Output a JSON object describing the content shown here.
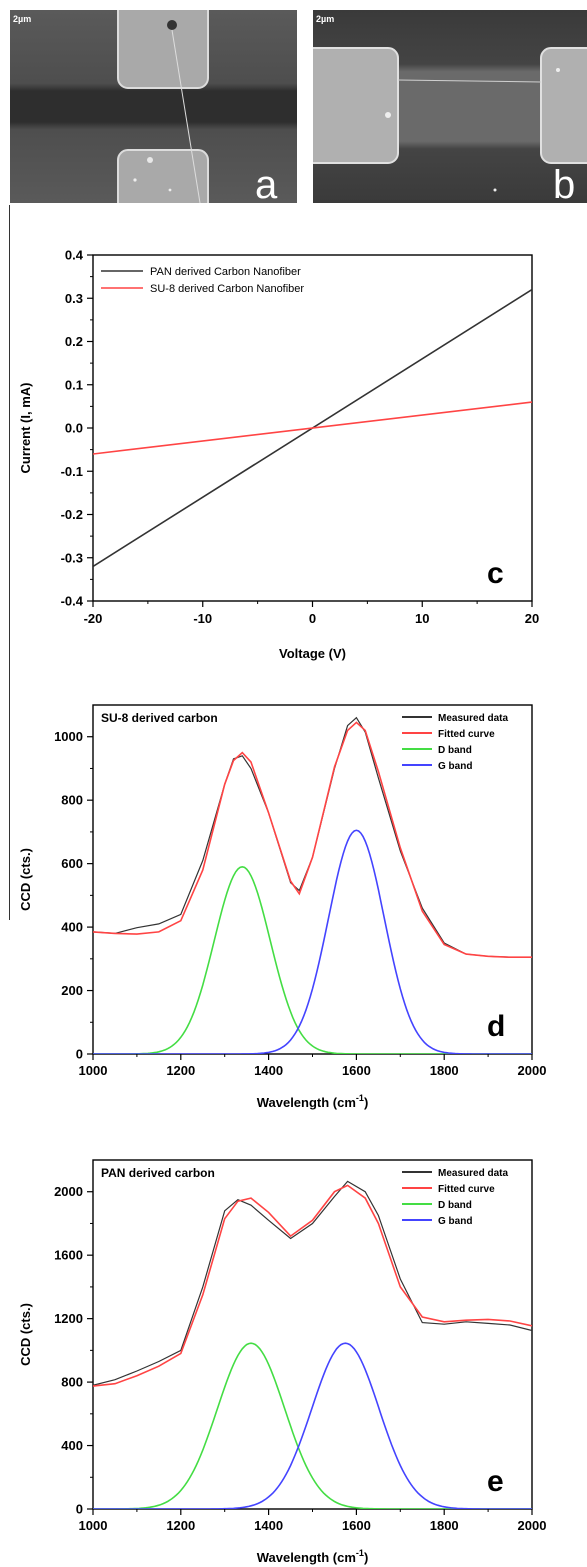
{
  "sem": {
    "a": {
      "scale_label": "2µm",
      "panel_letter": "a"
    },
    "b": {
      "scale_label": "2µm",
      "panel_letter": "b"
    }
  },
  "chart_data": [
    {
      "id": "c",
      "type": "line",
      "panel_letter": "c",
      "xlabel": "Voltage (V)",
      "ylabel": "Current (I, mA)",
      "xlim": [
        -20,
        20
      ],
      "ylim": [
        -0.4,
        0.4
      ],
      "xticks": [
        -20,
        -10,
        0,
        10,
        20
      ],
      "yticks": [
        -0.4,
        -0.3,
        -0.2,
        -0.1,
        0.0,
        0.1,
        0.2,
        0.3,
        0.4
      ],
      "legend_position": "top-left",
      "series": [
        {
          "name": "PAN derived Carbon Nanofiber",
          "color": "#333333",
          "x": [
            -20,
            20
          ],
          "y": [
            -0.32,
            0.32
          ]
        },
        {
          "name": "SU-8 derived Carbon Nanofiber",
          "color": "#ff4444",
          "x": [
            -20,
            20
          ],
          "y": [
            -0.06,
            0.06
          ]
        }
      ]
    },
    {
      "id": "d",
      "type": "line",
      "panel_letter": "d",
      "title": "SU-8 derived carbon",
      "xlabel": "Wavelength (cm",
      "xlabel_sup": "-1",
      "xlabel_end": ")",
      "ylabel": "CCD (cts.)",
      "xlim": [
        1000,
        2000
      ],
      "ylim": [
        0,
        1100
      ],
      "xticks": [
        1000,
        1200,
        1400,
        1600,
        1800,
        2000
      ],
      "yticks": [
        0,
        200,
        400,
        600,
        800,
        1000
      ],
      "legend_position": "top-right",
      "series": [
        {
          "name": "Measured data",
          "color": "#333333",
          "x": [
            1000,
            1050,
            1100,
            1150,
            1200,
            1250,
            1300,
            1320,
            1340,
            1360,
            1400,
            1450,
            1470,
            1500,
            1550,
            1580,
            1600,
            1620,
            1650,
            1700,
            1750,
            1800,
            1850,
            1900,
            1950,
            2000
          ],
          "y": [
            385,
            380,
            398,
            410,
            440,
            610,
            850,
            930,
            940,
            900,
            760,
            540,
            515,
            620,
            900,
            1035,
            1060,
            1015,
            870,
            640,
            460,
            350,
            315,
            308,
            305,
            305
          ]
        },
        {
          "name": "Fitted curve",
          "color": "#ff4444",
          "x": [
            1000,
            1050,
            1100,
            1150,
            1200,
            1250,
            1300,
            1320,
            1340,
            1360,
            1400,
            1450,
            1470,
            1500,
            1550,
            1580,
            1600,
            1620,
            1650,
            1700,
            1750,
            1800,
            1850,
            1900,
            1950,
            2000
          ],
          "y": [
            385,
            380,
            378,
            385,
            420,
            580,
            850,
            925,
            950,
            920,
            760,
            545,
            505,
            620,
            905,
            1020,
            1045,
            1020,
            890,
            650,
            450,
            345,
            315,
            308,
            305,
            305
          ]
        },
        {
          "name": "D band",
          "color": "#44dd44",
          "peak": {
            "center": 1340,
            "height": 590,
            "fwhm": 150
          }
        },
        {
          "name": "G band",
          "color": "#4444ff",
          "peak": {
            "center": 1600,
            "height": 705,
            "fwhm": 150
          }
        }
      ]
    },
    {
      "id": "e",
      "type": "line",
      "panel_letter": "e",
      "title": "PAN derived carbon",
      "xlabel": "Wavelength (cm",
      "xlabel_sup": "-1",
      "xlabel_end": ")",
      "ylabel": "CCD (cts.)",
      "xlim": [
        1000,
        2000
      ],
      "ylim": [
        0,
        2200
      ],
      "xticks": [
        1000,
        1200,
        1400,
        1600,
        1800,
        2000
      ],
      "yticks": [
        0,
        400,
        800,
        1200,
        1600,
        2000
      ],
      "legend_position": "top-right",
      "series": [
        {
          "name": "Measured data",
          "color": "#333333",
          "x": [
            1000,
            1050,
            1100,
            1150,
            1200,
            1250,
            1300,
            1330,
            1360,
            1400,
            1450,
            1500,
            1550,
            1580,
            1620,
            1650,
            1700,
            1750,
            1800,
            1850,
            1900,
            1950,
            2000
          ],
          "y": [
            780,
            815,
            870,
            930,
            1000,
            1400,
            1880,
            1950,
            1915,
            1820,
            1705,
            1800,
            1970,
            2065,
            2000,
            1850,
            1450,
            1175,
            1165,
            1180,
            1170,
            1160,
            1125
          ]
        },
        {
          "name": "Fitted curve",
          "color": "#ff4444",
          "x": [
            1000,
            1050,
            1100,
            1150,
            1200,
            1250,
            1300,
            1330,
            1360,
            1400,
            1450,
            1500,
            1550,
            1580,
            1620,
            1650,
            1700,
            1750,
            1800,
            1850,
            1900,
            1950,
            2000
          ],
          "y": [
            775,
            790,
            840,
            900,
            980,
            1350,
            1830,
            1940,
            1960,
            1870,
            1720,
            1820,
            2000,
            2040,
            1960,
            1800,
            1400,
            1210,
            1180,
            1190,
            1195,
            1185,
            1155
          ]
        },
        {
          "name": "D band",
          "color": "#44dd44",
          "peak": {
            "center": 1360,
            "height": 1045,
            "fwhm": 180
          }
        },
        {
          "name": "G band",
          "color": "#4444ff",
          "peak": {
            "center": 1575,
            "height": 1045,
            "fwhm": 180
          }
        }
      ]
    }
  ]
}
